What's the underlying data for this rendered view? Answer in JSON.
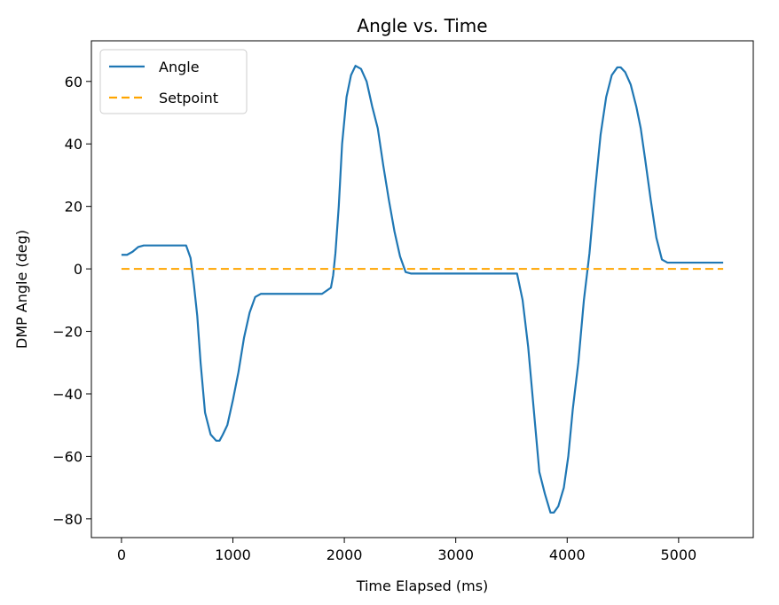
{
  "chart_data": {
    "type": "line",
    "title": "Angle vs. Time",
    "xlabel": "Time Elapsed (ms)",
    "ylabel": "DMP Angle (deg)",
    "xlim": [
      -270,
      5670
    ],
    "ylim": [
      -86,
      73
    ],
    "xticks": [
      0,
      1000,
      2000,
      3000,
      4000,
      5000
    ],
    "xtick_labels": [
      "0",
      "1000",
      "2000",
      "3000",
      "4000",
      "5000"
    ],
    "yticks": [
      -80,
      -60,
      -40,
      -20,
      0,
      20,
      40,
      60
    ],
    "ytick_labels": [
      "−80",
      "−60",
      "−40",
      "−20",
      "0",
      "20",
      "40",
      "60"
    ],
    "grid": false,
    "legend_position": "upper-left",
    "series": [
      {
        "name": "Angle",
        "color": "#1f77b4",
        "style": "solid",
        "x": [
          0,
          50,
          100,
          150,
          200,
          300,
          400,
          500,
          580,
          620,
          650,
          680,
          710,
          750,
          800,
          850,
          880,
          910,
          950,
          1000,
          1050,
          1100,
          1150,
          1200,
          1250,
          1300,
          1350,
          1400,
          1500,
          1600,
          1700,
          1800,
          1880,
          1900,
          1920,
          1950,
          1980,
          2020,
          2060,
          2100,
          2150,
          2200,
          2250,
          2300,
          2350,
          2400,
          2450,
          2500,
          2550,
          2600,
          2650,
          2700,
          2800,
          3000,
          3200,
          3400,
          3500,
          3550,
          3600,
          3650,
          3700,
          3750,
          3800,
          3850,
          3880,
          3920,
          3970,
          4010,
          4050,
          4100,
          4150,
          4200,
          4250,
          4300,
          4350,
          4400,
          4450,
          4480,
          4520,
          4570,
          4620,
          4660,
          4700,
          4750,
          4800,
          4850,
          4900,
          4950,
          5000,
          5100,
          5200,
          5300,
          5400
        ],
        "y": [
          4.5,
          4.5,
          5.5,
          7,
          7.5,
          7.5,
          7.5,
          7.5,
          7.5,
          3.5,
          -5,
          -15,
          -30,
          -46,
          -53,
          -55,
          -55,
          -53,
          -50,
          -42,
          -33,
          -22,
          -14,
          -9,
          -8,
          -8,
          -8,
          -8,
          -8,
          -8,
          -8,
          -8,
          -6,
          -2,
          5,
          20,
          40,
          55,
          62,
          65,
          64,
          60,
          52,
          45,
          33,
          22,
          12,
          4,
          -1,
          -1.5,
          -1.5,
          -1.5,
          -1.5,
          -1.5,
          -1.5,
          -1.5,
          -1.5,
          -1.5,
          -10,
          -25,
          -45,
          -65,
          -72,
          -78,
          -78,
          -76,
          -70,
          -60,
          -45,
          -30,
          -10,
          5,
          25,
          43,
          55,
          62,
          64.5,
          64.5,
          63,
          59,
          52,
          45,
          35,
          22,
          10,
          3,
          2,
          2,
          2,
          2,
          2,
          2,
          2
        ]
      },
      {
        "name": "Setpoint",
        "color": "#ffa500",
        "style": "dashed",
        "x": [
          0,
          5400
        ],
        "y": [
          0,
          0
        ]
      }
    ]
  }
}
